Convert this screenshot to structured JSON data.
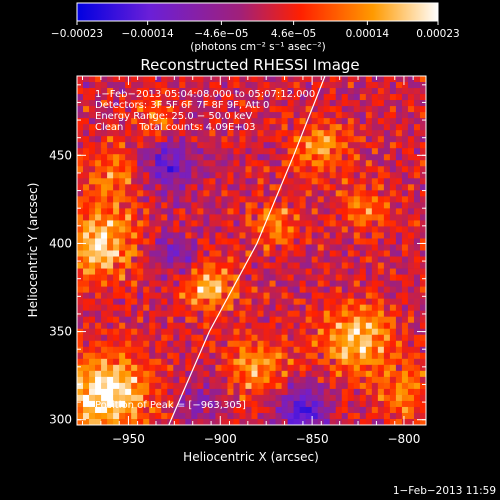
{
  "chart_data": {
    "type": "heatmap",
    "title": "Reconstructed RHESSI Image",
    "xlabel": "Heliocentric X (arcsec)",
    "ylabel": "Heliocentric Y (arcsec)",
    "xlim": [
      -978,
      -788
    ],
    "ylim": [
      297,
      495
    ],
    "xticks": [
      -950,
      -900,
      -850,
      -800
    ],
    "xtick_labels": [
      "−950",
      "−900",
      "−850",
      "−800"
    ],
    "yticks": [
      300,
      350,
      400,
      450
    ],
    "ytick_labels": [
      "300",
      "350",
      "400",
      "450"
    ],
    "colorbar": {
      "range": [
        -0.00023,
        0.00023
      ],
      "ticks": [
        -0.00023,
        -0.00014,
        -4.6e-05,
        4.6e-05,
        0.00014,
        0.00023
      ],
      "tick_labels": [
        "−0.00023",
        "−0.00014",
        "−4.6e−05",
        "4.6e−05",
        "0.00014",
        "0.00023"
      ],
      "unit_label": "(photons cm⁻² s⁻¹ asec⁻²)",
      "colors": [
        "#0000e0",
        "#6a1fd8",
        "#a0207a",
        "#ff2000",
        "#ff9a00",
        "#ffffff"
      ]
    },
    "annotations": [
      "1−Feb−2013 05:04:08.000 to 05:07:12.000",
      "Detectors: 3F 5F 6F 7F 8F 9F, Att 0",
      "Energy Range: 25.0 − 50.0 keV",
      "Clean     Total counts: 4.09E+03",
      "Position of Peak = [−963,305]"
    ],
    "limb_curve": {
      "x": [
        -928,
        -906,
        -880,
        -860,
        -843
      ],
      "y": [
        297,
        350,
        400,
        450,
        495
      ]
    },
    "peak": {
      "x": -963,
      "y": 305
    },
    "hot_regions": [
      {
        "x": -962,
        "y": 315,
        "r": 22,
        "v": 0.00023
      },
      {
        "x": -965,
        "y": 400,
        "r": 20,
        "v": 0.00018
      },
      {
        "x": -958,
        "y": 440,
        "r": 16,
        "v": 0.00012
      },
      {
        "x": -905,
        "y": 375,
        "r": 14,
        "v": 0.00016
      },
      {
        "x": -880,
        "y": 330,
        "r": 16,
        "v": 0.00013
      },
      {
        "x": -870,
        "y": 410,
        "r": 14,
        "v": 0.00011
      },
      {
        "x": -825,
        "y": 345,
        "r": 20,
        "v": 0.00017
      },
      {
        "x": -820,
        "y": 420,
        "r": 14,
        "v": 0.0001
      },
      {
        "x": -845,
        "y": 455,
        "r": 16,
        "v": 0.00013
      },
      {
        "x": -800,
        "y": 315,
        "r": 14,
        "v": 0.00012
      },
      {
        "x": -935,
        "y": 470,
        "r": 12,
        "v": 9e-05
      }
    ],
    "cold_regions": [
      {
        "x": -930,
        "y": 445,
        "r": 16,
        "v": -0.00014
      },
      {
        "x": -925,
        "y": 395,
        "r": 12,
        "v": -0.00011
      },
      {
        "x": -855,
        "y": 305,
        "r": 14,
        "v": -0.00016
      },
      {
        "x": -910,
        "y": 310,
        "r": 12,
        "v": -9e-05
      }
    ]
  },
  "footer_timestamp": "1−Feb−2013 11:59"
}
